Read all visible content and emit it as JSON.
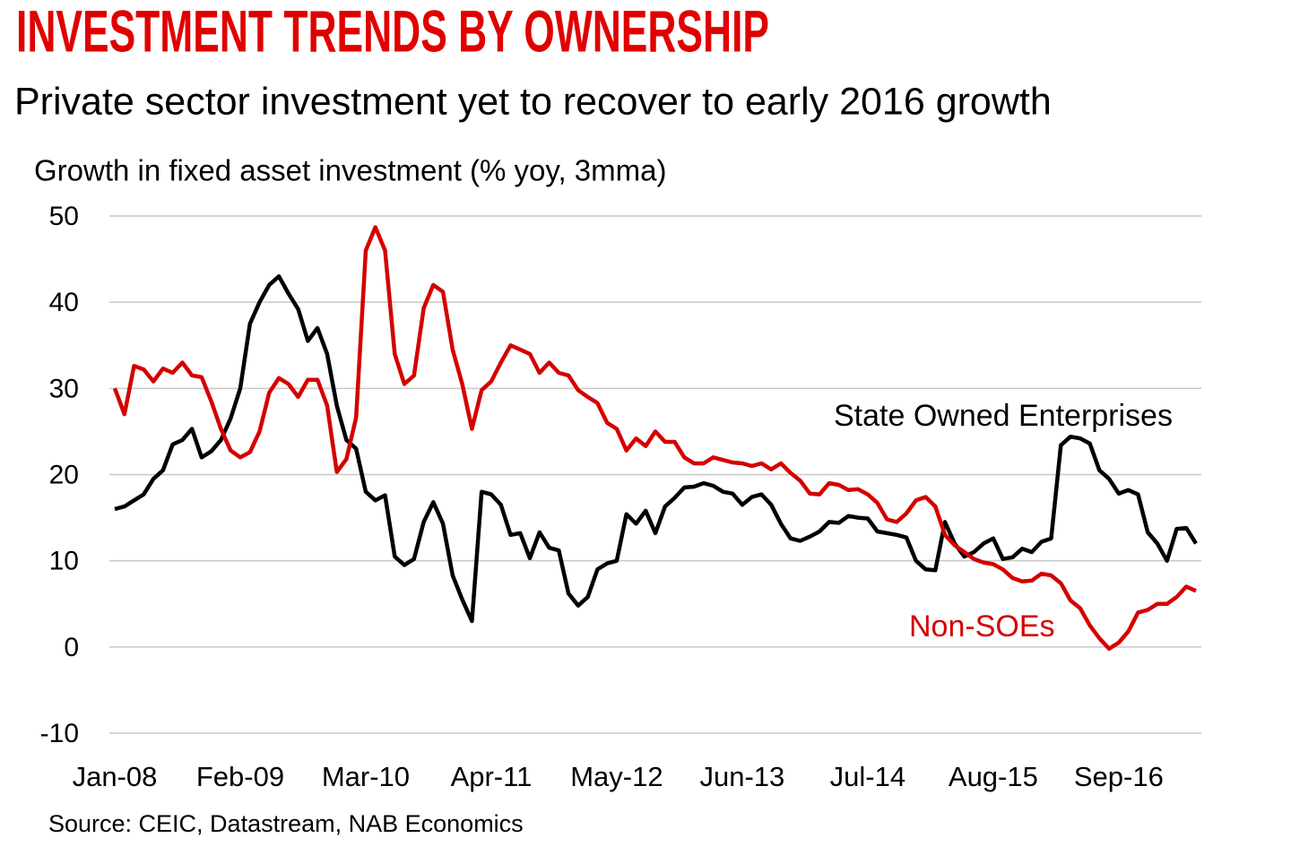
{
  "chart_data": {
    "type": "line",
    "title": "INVESTMENT TRENDS BY OWNERSHIP",
    "subtitle": "Private sector investment yet to recover to early 2016 growth",
    "y_label": "Growth in fixed asset investment (% yoy, 3mma)",
    "source": "Source: CEIC, Datastream, NAB Economics",
    "categories": [
      "Jan-08",
      null,
      null,
      null,
      null,
      null,
      null,
      null,
      null,
      null,
      null,
      null,
      null,
      "Feb-09",
      null,
      null,
      null,
      null,
      null,
      null,
      null,
      null,
      null,
      null,
      null,
      null,
      "Mar-10",
      null,
      null,
      null,
      null,
      null,
      null,
      null,
      null,
      null,
      null,
      null,
      null,
      "Apr-11",
      null,
      null,
      null,
      null,
      null,
      null,
      null,
      null,
      null,
      null,
      null,
      null,
      "May-12",
      null,
      null,
      null,
      null,
      null,
      null,
      null,
      null,
      null,
      null,
      null,
      null,
      "Jun-13",
      null,
      null,
      null,
      null,
      null,
      null,
      null,
      null,
      null,
      null,
      null,
      null,
      "Jul-14",
      null,
      null,
      null,
      null,
      null,
      null,
      null,
      null,
      null,
      null,
      null,
      null,
      "Aug-15",
      null,
      null,
      null,
      null,
      null,
      null,
      null,
      null,
      null,
      null,
      null,
      null,
      "Sep-16",
      null,
      null,
      null,
      null,
      null,
      null,
      null,
      null
    ],
    "series": [
      {
        "name": "State Owned Enterprises",
        "color": "#000000",
        "values": [
          16,
          16.3,
          17,
          17.7,
          19.5,
          20.5,
          23.5,
          24,
          25.3,
          22,
          22.7,
          24,
          26.5,
          30,
          37.5,
          40,
          42,
          43,
          41,
          39.2,
          35.5,
          37,
          34,
          28,
          24,
          23,
          18,
          17,
          17.6,
          10.5,
          9.5,
          10.2,
          14.5,
          16.8,
          14.3,
          8.3,
          5.5,
          3,
          18,
          17.7,
          16.5,
          13,
          13.2,
          10.3,
          13.3,
          11.5,
          11.2,
          6.2,
          4.8,
          5.8,
          9,
          9.7,
          10,
          15.4,
          14.3,
          15.8,
          13.2,
          16.3,
          17.3,
          18.5,
          18.6,
          19,
          18.7,
          18,
          17.8,
          16.5,
          17.4,
          17.7,
          16.5,
          14.3,
          12.6,
          12.3,
          12.8,
          13.4,
          14.5,
          14.4,
          15.2,
          15,
          14.9,
          13.4,
          13.2,
          13,
          12.7,
          10,
          9,
          8.9,
          14.5,
          12,
          10.5,
          11,
          12,
          12.6,
          10.2,
          10.4,
          11.4,
          11,
          12.2,
          12.6,
          23.4,
          24.4,
          24.2,
          23.6,
          20.5,
          19.5,
          17.8,
          18.2,
          17.7,
          13.3,
          12,
          10,
          13.7,
          13.8,
          12
        ]
      },
      {
        "name": "Non-SOEs",
        "color": "#d40000",
        "values": [
          30,
          27,
          32.6,
          32.2,
          30.8,
          32.3,
          31.8,
          33,
          31.5,
          31.3,
          28.5,
          25.3,
          22.8,
          22,
          22.6,
          25,
          29.5,
          31.2,
          30.5,
          29,
          31,
          31,
          28,
          20.3,
          21.8,
          26.6,
          46,
          48.7,
          46,
          34,
          30.5,
          31.5,
          39.3,
          42,
          41.2,
          34.5,
          30.5,
          25.3,
          29.8,
          30.8,
          33,
          35,
          34.5,
          34,
          31.8,
          33,
          31.8,
          31.5,
          29.8,
          29,
          28.3,
          26,
          25.3,
          22.8,
          24.2,
          23.3,
          25,
          23.8,
          23.8,
          22,
          21.3,
          21.3,
          22,
          21.7,
          21.4,
          21.3,
          21,
          21.3,
          20.6,
          21.3,
          20.2,
          19.3,
          17.8,
          17.7,
          19,
          18.8,
          18.2,
          18.3,
          17.7,
          16.7,
          14.8,
          14.5,
          15.5,
          17,
          17.4,
          16.3,
          13,
          11.8,
          11,
          10.2,
          9.8,
          9.6,
          9,
          8,
          7.6,
          7.7,
          8.5,
          8.3,
          7.4,
          5.4,
          4.5,
          2.5,
          1,
          -0.2,
          0.5,
          1.8,
          4,
          4.3,
          5,
          5,
          5.8,
          7,
          6.5
        ]
      }
    ],
    "ylim": [
      -10,
      50
    ],
    "yticks": [
      -10,
      0,
      10,
      20,
      30,
      40,
      50
    ],
    "grid": true
  }
}
